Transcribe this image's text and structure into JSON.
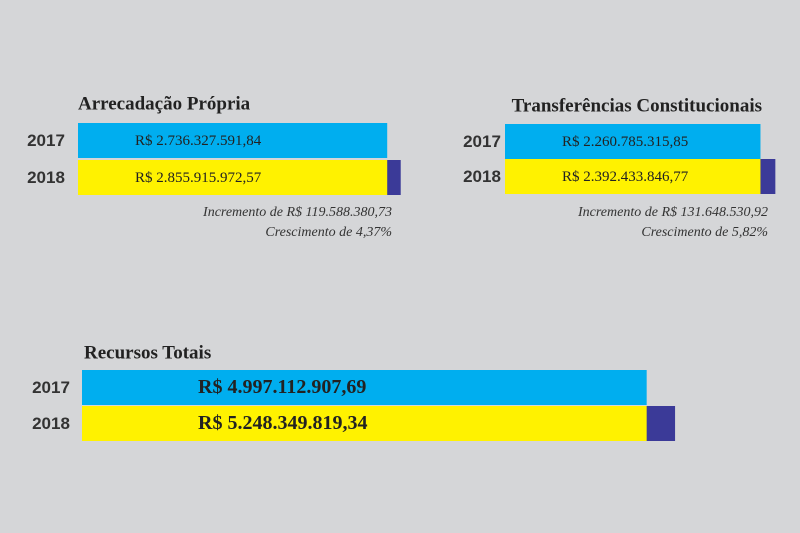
{
  "chart_data": [
    {
      "type": "bar",
      "title": "Arrecadação Própria",
      "categories": [
        "2017",
        "2018"
      ],
      "values": [
        2736327591.84,
        2855915972.57
      ],
      "value_labels": [
        "R$ 2.736.327.591,84",
        "R$ 2.855.915.972,57"
      ],
      "colors": [
        "#00aeef",
        "#fff200"
      ],
      "increment_color": "#3b3a98",
      "annotations": [
        "Incremento de R$ 119.588.380,73",
        "Crescimento de 4,37%"
      ]
    },
    {
      "type": "bar",
      "title": "Transferências Constitucionais",
      "categories": [
        "2017",
        "2018"
      ],
      "values": [
        2260785315.85,
        2392433846.77
      ],
      "value_labels": [
        "R$ 2.260.785.315,85",
        "R$ 2.392.433.846,77"
      ],
      "colors": [
        "#00aeef",
        "#fff200"
      ],
      "increment_color": "#3b3a98",
      "annotations": [
        "Incremento de R$ 131.648.530,92",
        "Crescimento de 5,82%"
      ]
    },
    {
      "type": "bar",
      "title": "Recursos Totais",
      "categories": [
        "2017",
        "2018"
      ],
      "values": [
        4997112907.69,
        5248349819.34
      ],
      "value_labels": [
        "R$ 4.997.112.907,69",
        "R$ 5.248.349.819,34"
      ],
      "colors": [
        "#00aeef",
        "#fff200"
      ],
      "increment_color": "#3b3a98"
    }
  ]
}
